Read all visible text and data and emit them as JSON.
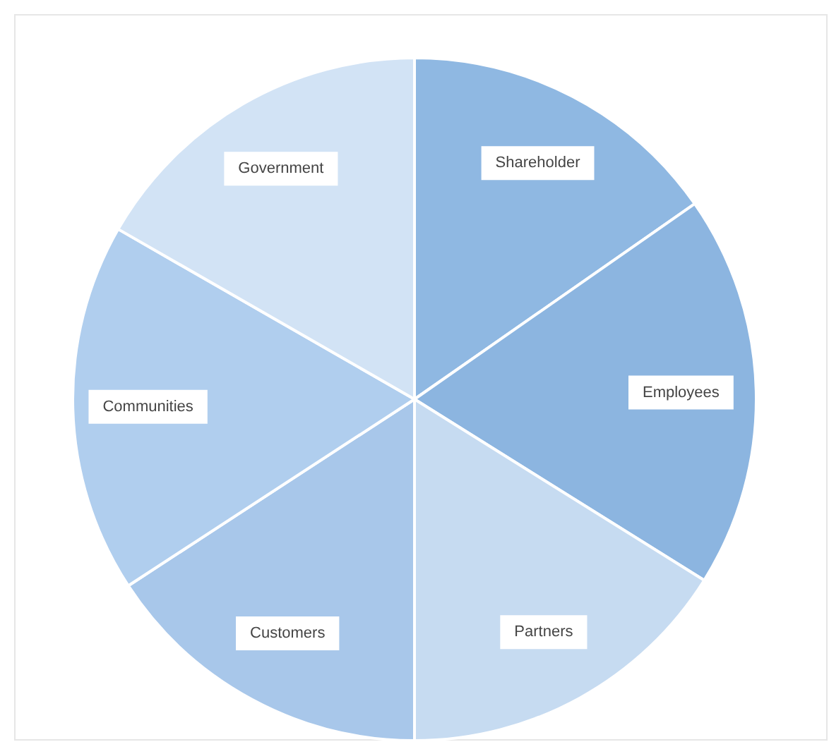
{
  "chart_data": {
    "type": "pie",
    "categories": [
      "Shareholder",
      "Employees",
      "Partners",
      "Customers",
      "Communities",
      "Government"
    ],
    "values": [
      15.3,
      18.6,
      16.1,
      15.8,
      17.5,
      16.7
    ],
    "colors": [
      "#8fb8e2",
      "#8cb5e0",
      "#c6dbf1",
      "#a8c7ea",
      "#b0ceee",
      "#d2e3f5"
    ],
    "legend": false
  }
}
